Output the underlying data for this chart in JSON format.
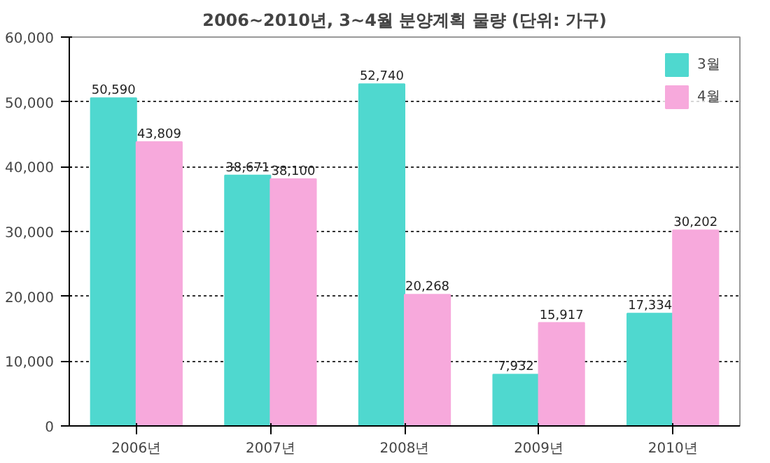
{
  "chart_data": {
    "type": "bar",
    "title": "2006~2010년, 3~4월 분양계획 물량 (단위: 가구)",
    "categories": [
      "2006년",
      "2007년",
      "2008년",
      "2009년",
      "2010년"
    ],
    "series": [
      {
        "name": "3월",
        "color": "#4fd8cf",
        "values": [
          50590,
          38671,
          52740,
          7932,
          17334
        ],
        "value_labels": [
          "50,590",
          "38,671",
          "52,740",
          "7,932",
          "17,334"
        ]
      },
      {
        "name": "4월",
        "color": "#f7a9dc",
        "values": [
          43809,
          38100,
          20268,
          15917,
          30202
        ],
        "value_labels": [
          "43,809",
          "38,100",
          "20,268",
          "15,917",
          "30,202"
        ]
      }
    ],
    "ylim": [
      0,
      60000
    ],
    "yticks": [
      {
        "value": 0,
        "label": "0"
      },
      {
        "value": 10000,
        "label": "10,000"
      },
      {
        "value": 20000,
        "label": "20,000"
      },
      {
        "value": 30000,
        "label": "30,000"
      },
      {
        "value": 40000,
        "label": "40,000"
      },
      {
        "value": 50000,
        "label": "50,000"
      },
      {
        "value": 60000,
        "label": "60,000"
      }
    ],
    "grid": "y",
    "legend": "top right"
  }
}
